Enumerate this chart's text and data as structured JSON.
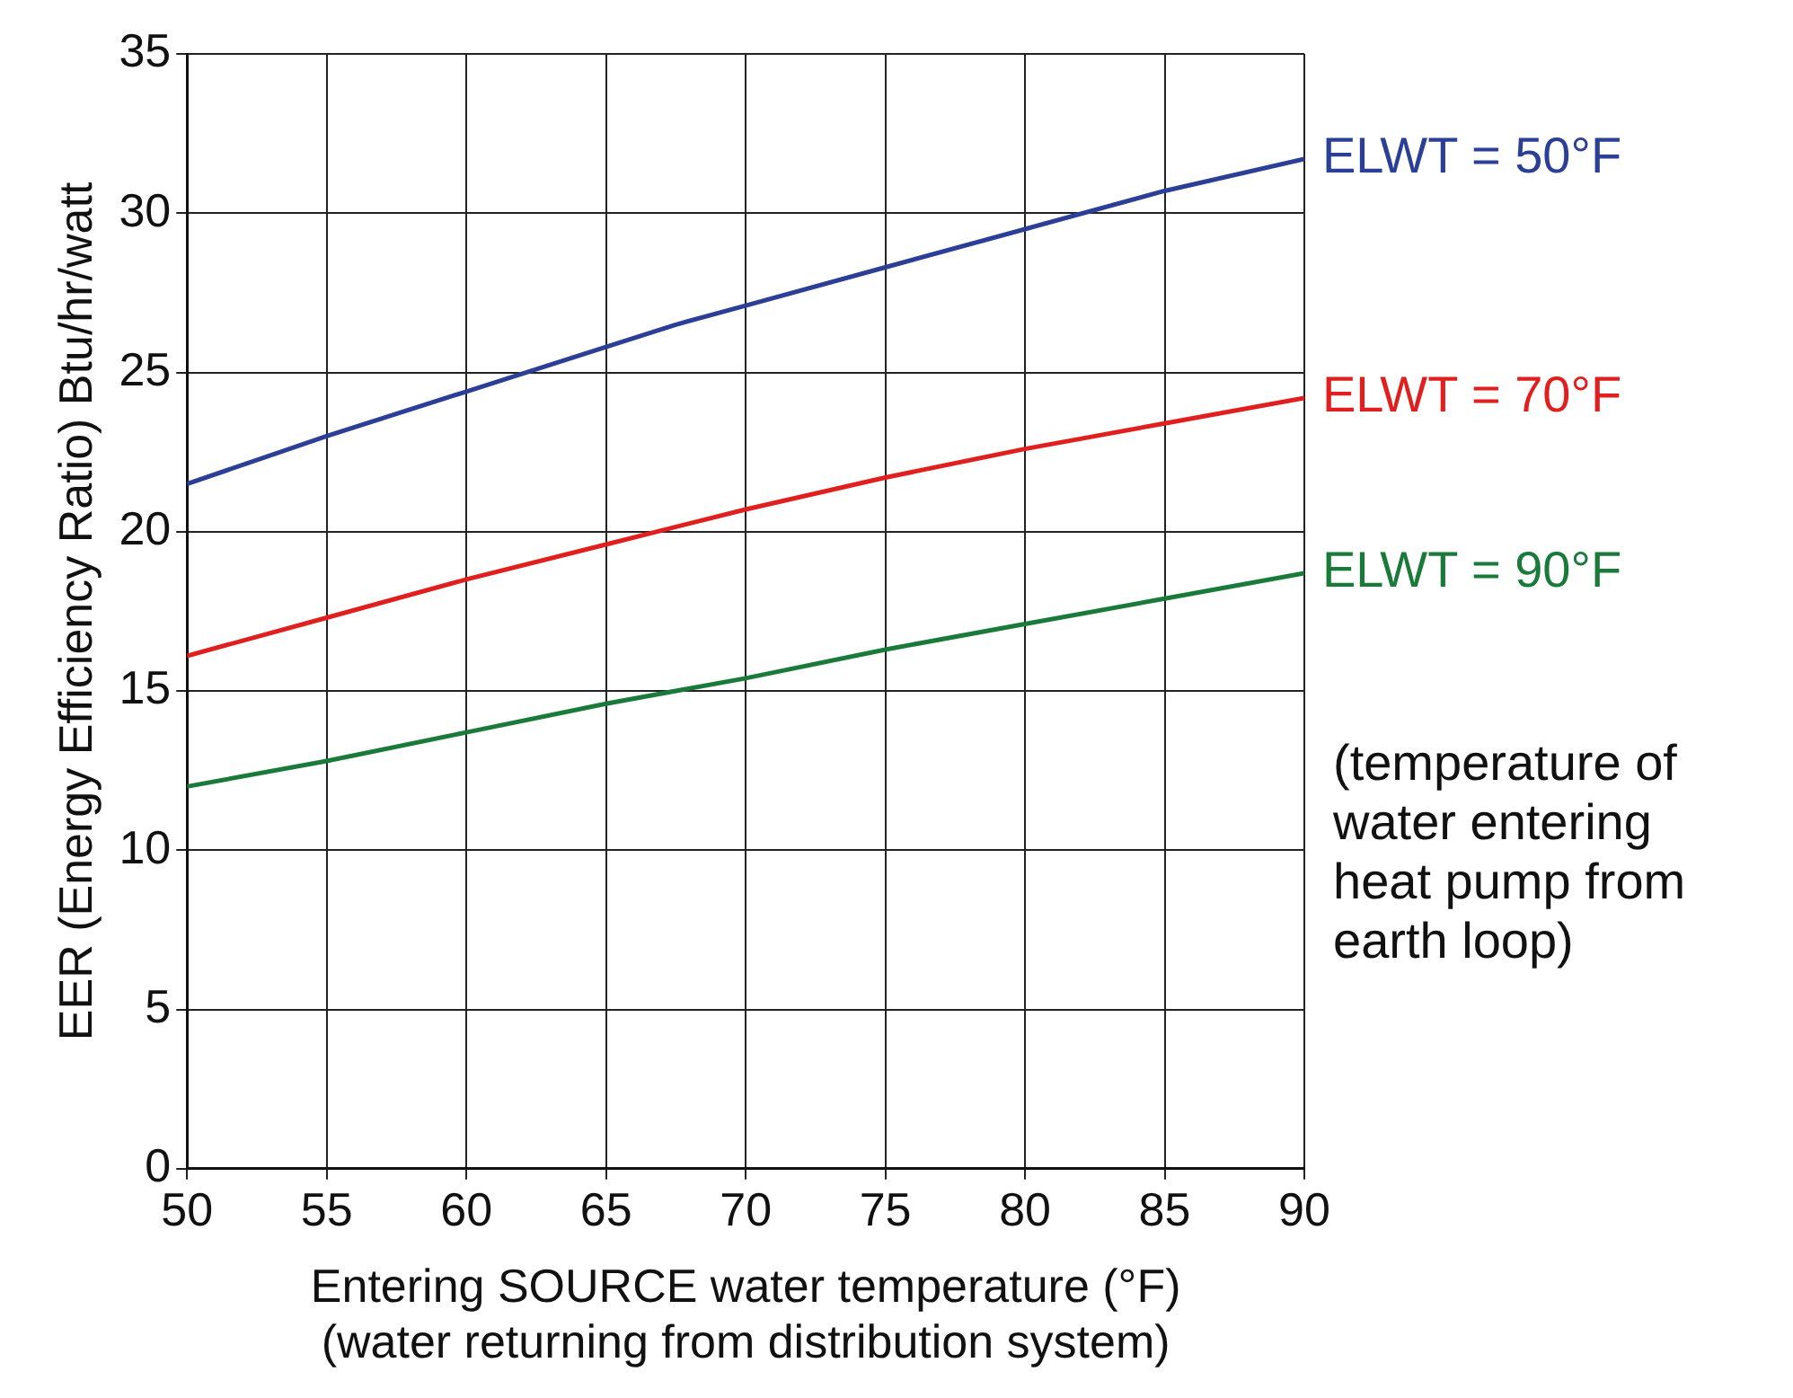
{
  "chart_data": {
    "type": "line",
    "xlabel": "Entering SOURCE water temperature (°F)\n(water returning from distribution system)",
    "ylabel": "EER (Energy Efficiency Ratio) Btu/hr/watt",
    "xlim": [
      50,
      90
    ],
    "xticks": [
      50,
      55,
      60,
      65,
      70,
      75,
      80,
      85,
      90
    ],
    "ylim": [
      0,
      35
    ],
    "yticks": [
      0,
      5,
      10,
      15,
      20,
      25,
      30,
      35
    ],
    "grid": true,
    "x": [
      50,
      55,
      60,
      65,
      70,
      75,
      80,
      85,
      90
    ],
    "series": [
      {
        "name": "ELWT = 50°F",
        "color": "#2b3f97",
        "x": [
          50,
          55,
          60,
          65,
          67.5,
          70,
          75,
          80,
          85,
          90
        ],
        "values": [
          21.5,
          23.0,
          24.4,
          25.8,
          26.5,
          27.1,
          28.3,
          29.5,
          30.7,
          31.7
        ]
      },
      {
        "name": "ELWT = 70°F",
        "color": "#e0201f",
        "x": [
          50,
          55,
          60,
          65,
          70,
          72.5,
          75,
          80,
          85,
          90
        ],
        "values": [
          16.1,
          17.3,
          18.5,
          19.6,
          20.7,
          21.2,
          21.7,
          22.6,
          23.4,
          24.2
        ]
      },
      {
        "name": "ELWT = 90°F",
        "color": "#1a7a3a",
        "values": [
          12.0,
          12.8,
          13.7,
          14.6,
          15.4,
          16.3,
          17.1,
          17.9,
          18.7
        ]
      }
    ],
    "annotations": [
      "(temperature of\nwater entering\nheat pump from\nearth loop)"
    ]
  }
}
